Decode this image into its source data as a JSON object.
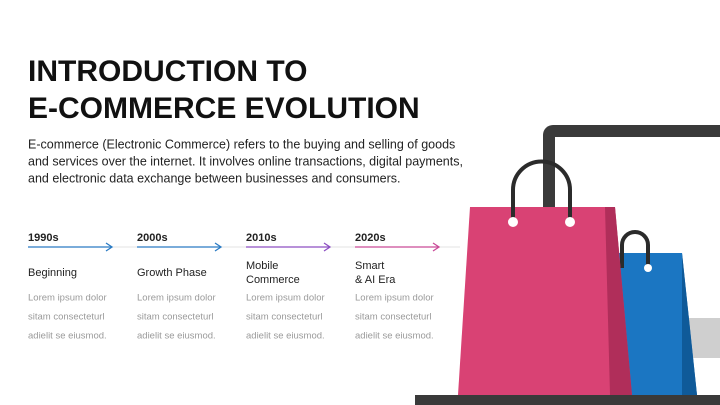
{
  "title": [
    "INTRODUCTION TO",
    "E-COMMERCE EVOLUTION"
  ],
  "description": [
    "E-commerce (Electronic Commerce) refers to the buying and selling of goods",
    "and services over the internet. It involves online transactions, digital payments,",
    "and electronic data exchange between businesses and consumers."
  ],
  "timeline": [
    {
      "year": "1990s",
      "label": [
        "Beginning"
      ],
      "body": [
        "Lorem ipsum dolor",
        "sitam consecteturl",
        "adielit se eiusmod."
      ]
    },
    {
      "year": "2000s",
      "label": [
        "Growth Phase"
      ],
      "body": [
        "Lorem ipsum dolor",
        "sitam consecteturl",
        "adielit se eiusmod."
      ]
    },
    {
      "year": "2010s",
      "label": [
        "Mobile",
        "Commerce"
      ],
      "body": [
        "Lorem ipsum dolor",
        "sitam consecteturl",
        "adielit se eiusmod."
      ]
    },
    {
      "year": "2020s",
      "label": [
        "Smart",
        "& AI Era"
      ],
      "body": [
        "Lorem ipsum dolor",
        "sitam consecteturl",
        "adielit se eiusmod."
      ]
    }
  ]
}
